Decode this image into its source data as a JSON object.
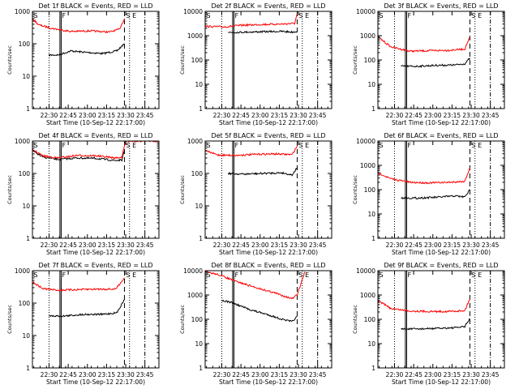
{
  "chart_data": [
    {
      "type": "line",
      "title": "Det 1f BLACK = Events, RED = LLD",
      "xlabel": "Start Time (10-Sep-12 22:17:00)",
      "ylabel": "Counts/sec",
      "x_ticks": [
        "22:30",
        "22:45",
        "23:00",
        "23:15",
        "23:30",
        "23:45"
      ],
      "y_ticks": [
        "1",
        "10",
        "100",
        "1000"
      ],
      "x_range_min_after_start": [
        0,
        99
      ],
      "y_range": [
        1,
        1000
      ],
      "y_scale": "log",
      "markers": [
        "S",
        "F",
        "S",
        "E"
      ],
      "series": [
        {
          "color": "#000000",
          "values": [
            {
              "x": 13,
              "y": 45
            },
            {
              "x": 20,
              "y": 45
            },
            {
              "x": 30,
              "y": 60
            },
            {
              "x": 40,
              "y": 55
            },
            {
              "x": 55,
              "y": 50
            },
            {
              "x": 66,
              "y": 60
            },
            {
              "x": 72,
              "y": 100
            }
          ]
        },
        {
          "color": "#ff0000",
          "values": [
            {
              "x": 0,
              "y": 600
            },
            {
              "x": 5,
              "y": 380
            },
            {
              "x": 15,
              "y": 300
            },
            {
              "x": 30,
              "y": 240
            },
            {
              "x": 45,
              "y": 250
            },
            {
              "x": 60,
              "y": 230
            },
            {
              "x": 68,
              "y": 280
            },
            {
              "x": 72,
              "y": 600
            }
          ]
        }
      ]
    },
    {
      "type": "line",
      "title": "Det 2f BLACK = Events, RED = LLD",
      "xlabel": "Start Time (10-Sep-12 22:17:00)",
      "ylabel": "Counts/sec",
      "x_ticks": [
        "22:30",
        "22:45",
        "23:00",
        "23:15",
        "23:30",
        "23:45"
      ],
      "y_ticks": [
        "1",
        "10",
        "100",
        "1000",
        "10000"
      ],
      "x_range_min_after_start": [
        0,
        99
      ],
      "y_range": [
        1,
        10000
      ],
      "y_scale": "log",
      "markers": [
        "S",
        "F",
        "S",
        "E"
      ],
      "series": [
        {
          "color": "#000000",
          "values": [
            {
              "x": 18,
              "y": 1350
            },
            {
              "x": 30,
              "y": 1400
            },
            {
              "x": 45,
              "y": 1450
            },
            {
              "x": 60,
              "y": 1500
            },
            {
              "x": 68,
              "y": 1400
            },
            {
              "x": 72,
              "y": 1500
            }
          ]
        },
        {
          "color": "#ff0000",
          "values": [
            {
              "x": 0,
              "y": 2400
            },
            {
              "x": 15,
              "y": 2300
            },
            {
              "x": 30,
              "y": 2700
            },
            {
              "x": 45,
              "y": 2900
            },
            {
              "x": 60,
              "y": 3000
            },
            {
              "x": 70,
              "y": 3200
            },
            {
              "x": 72,
              "y": 8000
            }
          ]
        }
      ]
    },
    {
      "type": "line",
      "title": "Det 3f BLACK = Events, RED = LLD",
      "xlabel": "Start Time (10-Sep-12 22:17:00)",
      "ylabel": "Counts/sec",
      "x_ticks": [
        "22:30",
        "22:45",
        "23:00",
        "23:15",
        "23:30",
        "23:45"
      ],
      "y_ticks": [
        "1",
        "10",
        "100",
        "1000",
        "10000"
      ],
      "x_range_min_after_start": [
        0,
        99
      ],
      "y_range": [
        1,
        10000
      ],
      "y_scale": "log",
      "markers": [
        "S",
        "F",
        "S",
        "E"
      ],
      "series": [
        {
          "color": "#000000",
          "values": [
            {
              "x": 18,
              "y": 55
            },
            {
              "x": 30,
              "y": 55
            },
            {
              "x": 45,
              "y": 60
            },
            {
              "x": 60,
              "y": 62
            },
            {
              "x": 68,
              "y": 70
            },
            {
              "x": 72,
              "y": 120
            }
          ]
        },
        {
          "color": "#ff0000",
          "values": [
            {
              "x": 0,
              "y": 900
            },
            {
              "x": 10,
              "y": 350
            },
            {
              "x": 25,
              "y": 230
            },
            {
              "x": 40,
              "y": 240
            },
            {
              "x": 55,
              "y": 250
            },
            {
              "x": 68,
              "y": 280
            },
            {
              "x": 72,
              "y": 900
            }
          ]
        }
      ]
    },
    {
      "type": "line",
      "title": "Det 4f BLACK = Events, RED = LLD",
      "xlabel": "Start Time (10-Sep-12 22:17:00)",
      "ylabel": "Counts/sec",
      "x_ticks": [
        "22:30",
        "22:45",
        "23:00",
        "23:15",
        "23:30",
        "23:45"
      ],
      "y_ticks": [
        "1",
        "10",
        "100",
        "1000"
      ],
      "x_range_min_after_start": [
        0,
        99
      ],
      "y_range": [
        1,
        1000
      ],
      "y_scale": "log",
      "markers": [
        "S",
        "F",
        "S",
        "E"
      ],
      "series": [
        {
          "color": "#000000",
          "values": [
            {
              "x": 0,
              "y": 500
            },
            {
              "x": 8,
              "y": 320
            },
            {
              "x": 20,
              "y": 270
            },
            {
              "x": 35,
              "y": 300
            },
            {
              "x": 50,
              "y": 290
            },
            {
              "x": 65,
              "y": 250
            },
            {
              "x": 70,
              "y": 260
            },
            {
              "x": 72,
              "y": 500
            }
          ]
        },
        {
          "color": "#ff0000",
          "values": [
            {
              "x": 0,
              "y": 550
            },
            {
              "x": 8,
              "y": 350
            },
            {
              "x": 20,
              "y": 300
            },
            {
              "x": 35,
              "y": 360
            },
            {
              "x": 50,
              "y": 350
            },
            {
              "x": 65,
              "y": 300
            },
            {
              "x": 70,
              "y": 320
            },
            {
              "x": 72,
              "y": 700
            },
            {
              "x": 73,
              "y": 1000
            },
            {
              "x": 99,
              "y": 1000
            }
          ]
        }
      ]
    },
    {
      "type": "line",
      "title": "Det 5f BLACK = Events, RED = LLD",
      "xlabel": "Start Time (10-Sep-12 22:17:00)",
      "ylabel": "Counts/sec",
      "x_ticks": [
        "22:30",
        "22:45",
        "23:00",
        "23:15",
        "23:30",
        "23:45"
      ],
      "y_ticks": [
        "1",
        "10",
        "100",
        "1000"
      ],
      "x_range_min_after_start": [
        0,
        99
      ],
      "y_range": [
        1,
        1000
      ],
      "y_scale": "log",
      "markers": [
        "S",
        "F",
        "S",
        "E"
      ],
      "series": [
        {
          "color": "#000000",
          "values": [
            {
              "x": 18,
              "y": 100
            },
            {
              "x": 30,
              "y": 95
            },
            {
              "x": 45,
              "y": 100
            },
            {
              "x": 60,
              "y": 105
            },
            {
              "x": 68,
              "y": 90
            },
            {
              "x": 72,
              "y": 150
            }
          ]
        },
        {
          "color": "#ff0000",
          "values": [
            {
              "x": 0,
              "y": 500
            },
            {
              "x": 10,
              "y": 370
            },
            {
              "x": 25,
              "y": 360
            },
            {
              "x": 40,
              "y": 390
            },
            {
              "x": 55,
              "y": 400
            },
            {
              "x": 68,
              "y": 380
            },
            {
              "x": 72,
              "y": 700
            }
          ]
        }
      ]
    },
    {
      "type": "line",
      "title": "Det 6f BLACK = Events, RED = LLD",
      "xlabel": "Start Time (10-Sep-12 22:17:00)",
      "ylabel": "Counts/sec",
      "x_ticks": [
        "22:30",
        "22:45",
        "23:00",
        "23:15",
        "23:30",
        "23:45"
      ],
      "y_ticks": [
        "1",
        "10",
        "100",
        "1000",
        "10000"
      ],
      "x_range_min_after_start": [
        0,
        99
      ],
      "y_range": [
        1,
        10000
      ],
      "y_scale": "log",
      "markers": [
        "S",
        "F",
        "S",
        "E"
      ],
      "series": [
        {
          "color": "#000000",
          "values": [
            {
              "x": 18,
              "y": 45
            },
            {
              "x": 30,
              "y": 45
            },
            {
              "x": 45,
              "y": 48
            },
            {
              "x": 60,
              "y": 55
            },
            {
              "x": 68,
              "y": 50
            },
            {
              "x": 72,
              "y": 100
            }
          ]
        },
        {
          "color": "#ff0000",
          "values": [
            {
              "x": 0,
              "y": 500
            },
            {
              "x": 10,
              "y": 280
            },
            {
              "x": 25,
              "y": 200
            },
            {
              "x": 40,
              "y": 190
            },
            {
              "x": 55,
              "y": 200
            },
            {
              "x": 68,
              "y": 220
            },
            {
              "x": 72,
              "y": 800
            }
          ]
        }
      ]
    },
    {
      "type": "line",
      "title": "Det 7f BLACK = Events, RED = LLD",
      "xlabel": "Start Time (10-Sep-12 22:17:00)",
      "ylabel": "Counts/sec",
      "x_ticks": [
        "22:30",
        "22:45",
        "23:00",
        "23:15",
        "23:30",
        "23:45"
      ],
      "y_ticks": [
        "1",
        "10",
        "100",
        "1000"
      ],
      "x_range_min_after_start": [
        0,
        99
      ],
      "y_range": [
        1,
        1000
      ],
      "y_scale": "log",
      "markers": [
        "S",
        "F",
        "S",
        "E"
      ],
      "series": [
        {
          "color": "#000000",
          "values": [
            {
              "x": 13,
              "y": 40
            },
            {
              "x": 25,
              "y": 40
            },
            {
              "x": 40,
              "y": 45
            },
            {
              "x": 55,
              "y": 45
            },
            {
              "x": 66,
              "y": 50
            },
            {
              "x": 72,
              "y": 130
            }
          ]
        },
        {
          "color": "#ff0000",
          "values": [
            {
              "x": 0,
              "y": 450
            },
            {
              "x": 8,
              "y": 280
            },
            {
              "x": 20,
              "y": 250
            },
            {
              "x": 35,
              "y": 260
            },
            {
              "x": 50,
              "y": 270
            },
            {
              "x": 65,
              "y": 270
            },
            {
              "x": 72,
              "y": 600
            }
          ]
        }
      ]
    },
    {
      "type": "line",
      "title": "Det 8f BLACK = Events, RED = LLD",
      "xlabel": "Start Time (10-Sep-12 22:17:00)",
      "ylabel": "Counts/sec",
      "x_ticks": [
        "22:30",
        "22:45",
        "23:00",
        "23:15",
        "23:30",
        "23:45"
      ],
      "y_ticks": [
        "1",
        "10",
        "100",
        "1000",
        "10000"
      ],
      "x_range_min_after_start": [
        0,
        99
      ],
      "y_range": [
        1,
        10000
      ],
      "y_scale": "log",
      "markers": [
        "S",
        "F",
        "S",
        "E"
      ],
      "series": [
        {
          "color": "#000000",
          "values": [
            {
              "x": 13,
              "y": 600
            },
            {
              "x": 20,
              "y": 500
            },
            {
              "x": 35,
              "y": 250
            },
            {
              "x": 50,
              "y": 150
            },
            {
              "x": 60,
              "y": 100
            },
            {
              "x": 68,
              "y": 80
            },
            {
              "x": 72,
              "y": 130
            }
          ]
        },
        {
          "color": "#ff0000",
          "values": [
            {
              "x": 0,
              "y": 9000
            },
            {
              "x": 10,
              "y": 7000
            },
            {
              "x": 25,
              "y": 3500
            },
            {
              "x": 40,
              "y": 2000
            },
            {
              "x": 55,
              "y": 1200
            },
            {
              "x": 68,
              "y": 700
            },
            {
              "x": 72,
              "y": 1000
            },
            {
              "x": 78,
              "y": 9000
            }
          ]
        }
      ]
    },
    {
      "type": "line",
      "title": "Det 9f BLACK = Events, RED = LLD",
      "xlabel": "Start Time (10-Sep-12 22:17:00)",
      "ylabel": "Counts/sec",
      "x_ticks": [
        "22:30",
        "22:45",
        "23:00",
        "23:15",
        "23:30",
        "23:45"
      ],
      "y_ticks": [
        "1",
        "10",
        "100",
        "1000",
        "10000"
      ],
      "x_range_min_after_start": [
        0,
        99
      ],
      "y_range": [
        1,
        10000
      ],
      "y_scale": "log",
      "markers": [
        "S",
        "F",
        "S",
        "E"
      ],
      "series": [
        {
          "color": "#000000",
          "values": [
            {
              "x": 18,
              "y": 40
            },
            {
              "x": 30,
              "y": 40
            },
            {
              "x": 45,
              "y": 42
            },
            {
              "x": 60,
              "y": 45
            },
            {
              "x": 68,
              "y": 50
            },
            {
              "x": 72,
              "y": 110
            }
          ]
        },
        {
          "color": "#ff0000",
          "values": [
            {
              "x": 0,
              "y": 600
            },
            {
              "x": 10,
              "y": 280
            },
            {
              "x": 25,
              "y": 220
            },
            {
              "x": 40,
              "y": 210
            },
            {
              "x": 55,
              "y": 210
            },
            {
              "x": 68,
              "y": 230
            },
            {
              "x": 72,
              "y": 700
            }
          ]
        }
      ]
    }
  ]
}
